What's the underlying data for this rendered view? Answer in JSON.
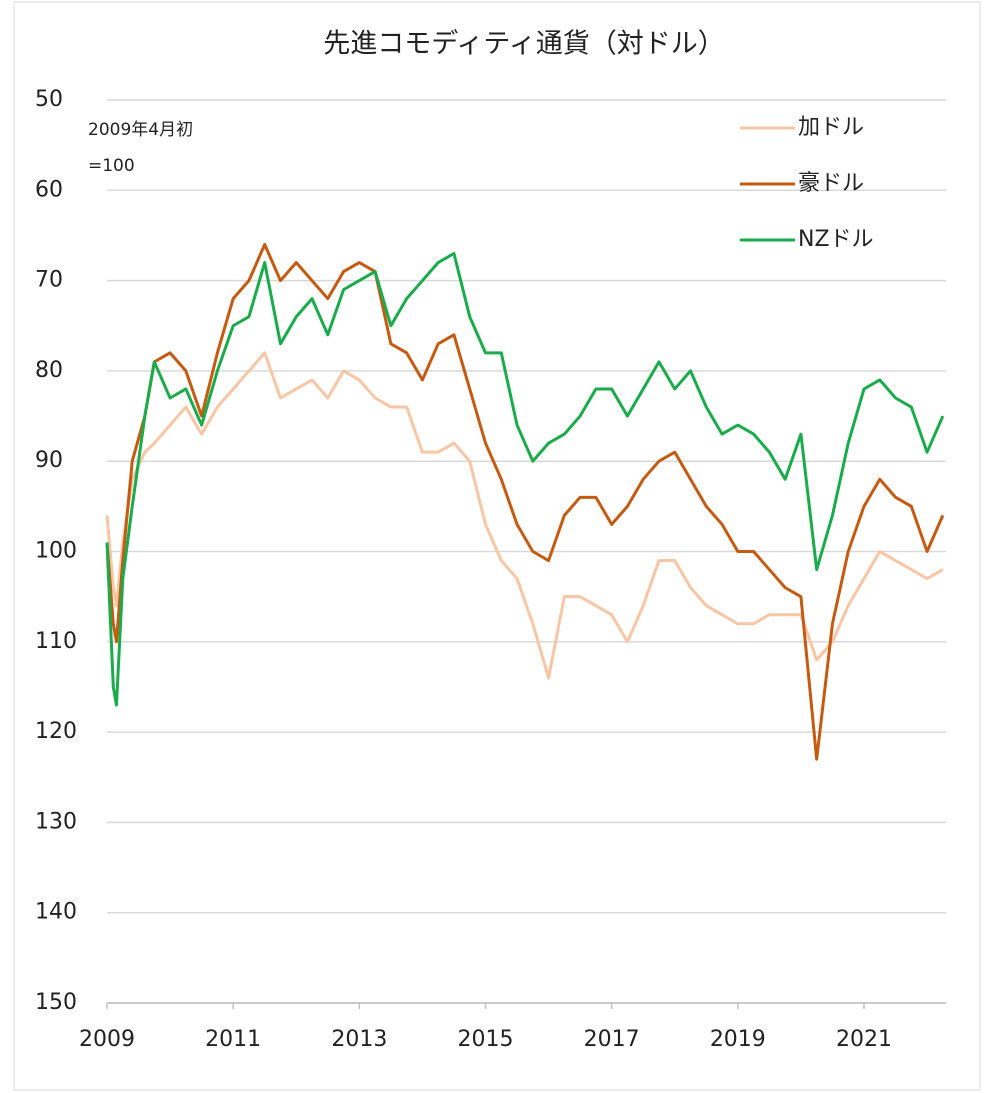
{
  "chart_data": {
    "type": "line",
    "title": "先進コモディティ通貨（対ドル）",
    "annotation": [
      "2009年4月初",
      "=100"
    ],
    "x": [
      2009,
      2009.1,
      2009.15,
      2009.25,
      2009.4,
      2009.6,
      2009.75,
      2010,
      2010.25,
      2010.5,
      2010.75,
      2011,
      2011.25,
      2011.5,
      2011.75,
      2012,
      2012.25,
      2012.5,
      2012.75,
      2013,
      2013.25,
      2013.5,
      2013.75,
      2014,
      2014.25,
      2014.5,
      2014.75,
      2015,
      2015.25,
      2015.5,
      2015.75,
      2016,
      2016.25,
      2016.5,
      2016.75,
      2017,
      2017.25,
      2017.5,
      2017.75,
      2018,
      2018.25,
      2018.5,
      2018.75,
      2019,
      2019.25,
      2019.5,
      2019.75,
      2020,
      2020.25,
      2020.5,
      2020.75,
      2021,
      2021.25,
      2021.5,
      2021.75,
      2022,
      2022.25
    ],
    "series": [
      {
        "name": "加ドル",
        "color": "#f8c6a4",
        "values": [
          96,
          104,
          106,
          99,
          92,
          89,
          88,
          86,
          84,
          87,
          84,
          82,
          80,
          78,
          83,
          82,
          81,
          83,
          80,
          81,
          83,
          84,
          84,
          89,
          89,
          88,
          90,
          97,
          101,
          103,
          108,
          114,
          105,
          105,
          106,
          107,
          110,
          106,
          101,
          101,
          104,
          106,
          107,
          108,
          108,
          107,
          107,
          107,
          112,
          110,
          106,
          103,
          100,
          101,
          102,
          103,
          102
        ]
      },
      {
        "name": "豪ドル",
        "color": "#c55a11",
        "values": [
          99,
          108,
          110,
          101,
          90,
          85,
          79,
          78,
          80,
          85,
          78,
          72,
          70,
          66,
          70,
          68,
          70,
          72,
          69,
          68,
          69,
          77,
          78,
          81,
          77,
          76,
          82,
          88,
          92,
          97,
          100,
          101,
          96,
          94,
          94,
          97,
          95,
          92,
          90,
          89,
          92,
          95,
          97,
          100,
          100,
          102,
          104,
          105,
          123,
          108,
          100,
          95,
          92,
          94,
          95,
          100,
          96
        ]
      },
      {
        "name": "NZドル",
        "color": "#1aab4b",
        "values": [
          99,
          115,
          117,
          103,
          95,
          85,
          79,
          83,
          82,
          86,
          80,
          75,
          74,
          68,
          77,
          74,
          72,
          76,
          71,
          70,
          69,
          75,
          72,
          70,
          68,
          67,
          74,
          78,
          78,
          86,
          90,
          88,
          87,
          85,
          82,
          82,
          85,
          82,
          79,
          82,
          80,
          84,
          87,
          86,
          87,
          89,
          92,
          87,
          102,
          96,
          88,
          82,
          81,
          83,
          84,
          89,
          85
        ]
      }
    ],
    "xlim": [
      2009,
      2022.3
    ],
    "xticks": [
      2009,
      2011,
      2013,
      2015,
      2017,
      2019,
      2021
    ],
    "ylim": [
      150,
      50
    ],
    "yticks": [
      50,
      60,
      70,
      80,
      90,
      100,
      110,
      120,
      130,
      140,
      150
    ],
    "grid": true,
    "legend": "upper right"
  }
}
